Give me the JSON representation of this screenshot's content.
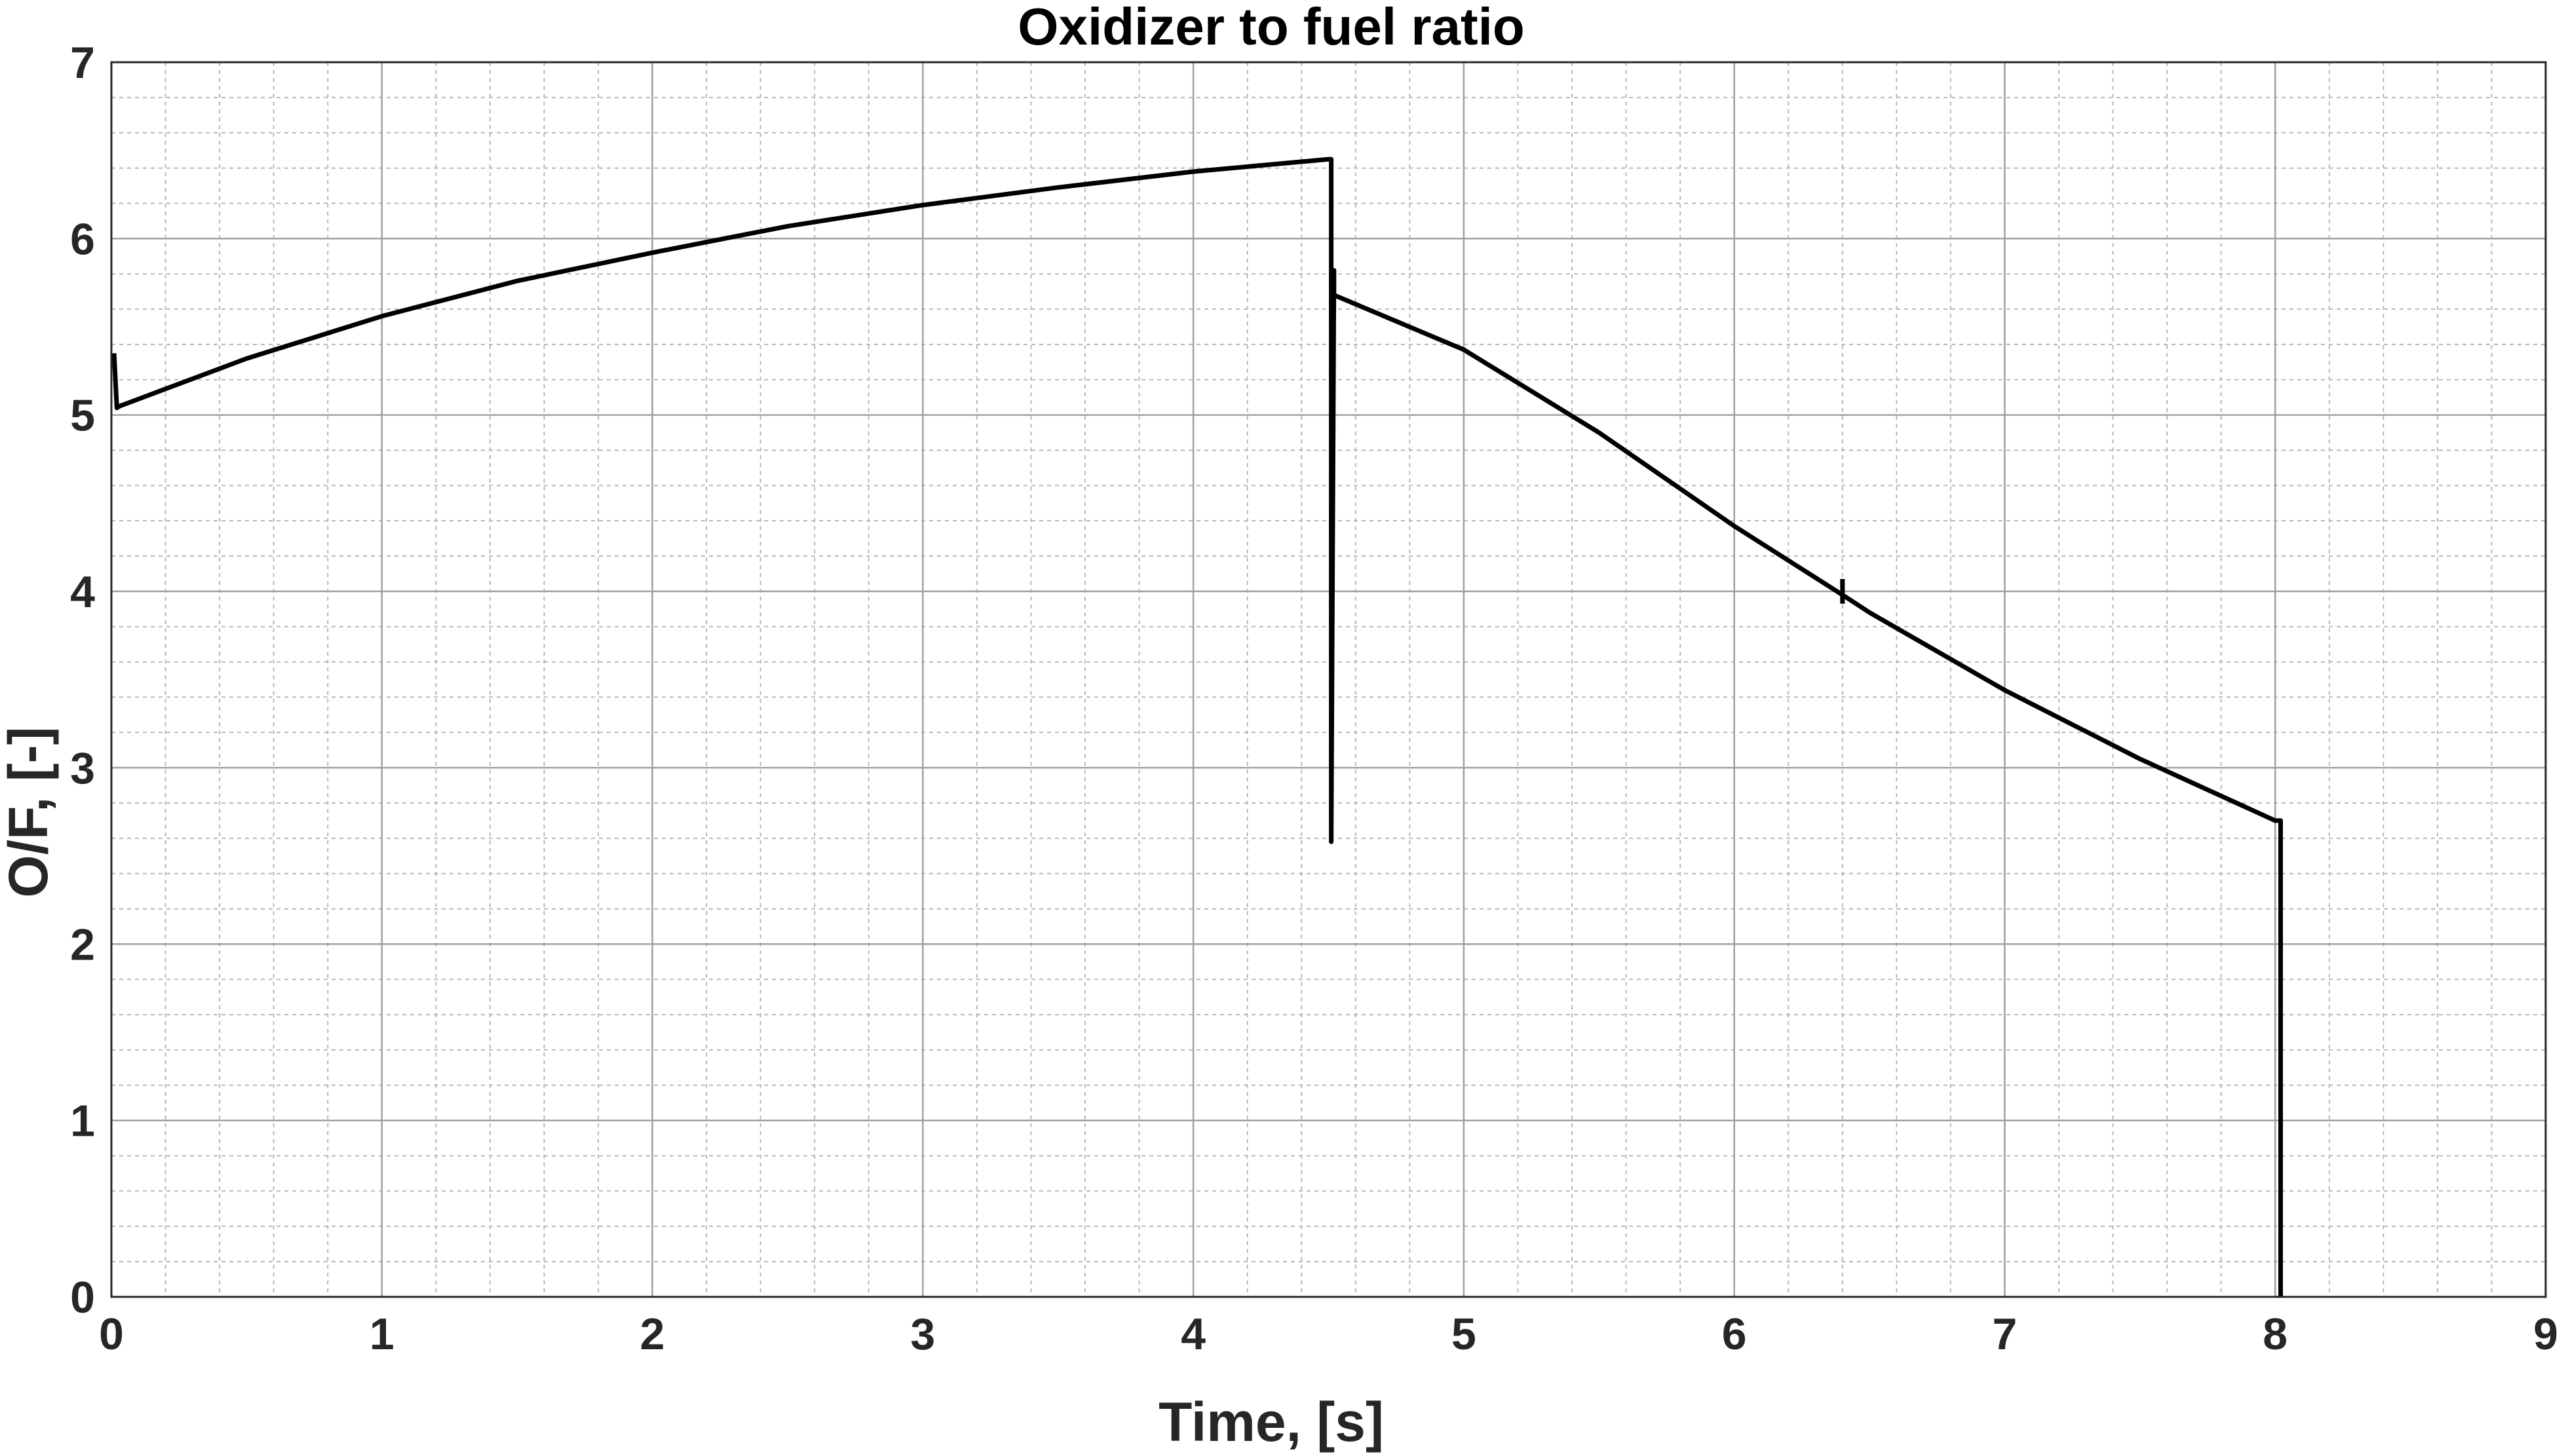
{
  "chart_data": {
    "type": "line",
    "title": "Oxidizer to fuel ratio",
    "xlabel": "Time, [s]",
    "ylabel": "O/F, [-]",
    "xlim": [
      0,
      9
    ],
    "ylim": [
      0,
      7
    ],
    "x_ticks": [
      "0",
      "1",
      "2",
      "3",
      "4",
      "5",
      "6",
      "7",
      "8",
      "9"
    ],
    "y_ticks": [
      "0",
      "1",
      "2",
      "3",
      "4",
      "5",
      "6",
      "7"
    ],
    "grid": true,
    "minor_grid": true,
    "line_color": "#000000",
    "series": [
      {
        "x": [
          0.01,
          0.02,
          0.03,
          0.5,
          1.0,
          1.5,
          2.0,
          2.5,
          3.0,
          3.5,
          4.0,
          4.5,
          4.51,
          4.51,
          4.52,
          4.52
        ],
        "y": [
          5.35,
          5.04,
          5.05,
          5.32,
          5.56,
          5.76,
          5.92,
          6.07,
          6.19,
          6.29,
          6.38,
          6.45,
          6.45,
          2.58,
          5.82,
          5.68
        ]
      },
      {
        "x": [
          4.52,
          5.0,
          5.5,
          6.0,
          6.4,
          6.5,
          7.0,
          7.5,
          8.0,
          8.02,
          8.02
        ],
        "y": [
          5.68,
          5.37,
          4.9,
          4.37,
          3.98,
          3.88,
          3.44,
          3.05,
          2.7,
          2.7,
          0.0
        ]
      },
      {
        "x": [
          6.4,
          6.4
        ],
        "y": [
          3.93,
          4.07
        ]
      }
    ]
  }
}
